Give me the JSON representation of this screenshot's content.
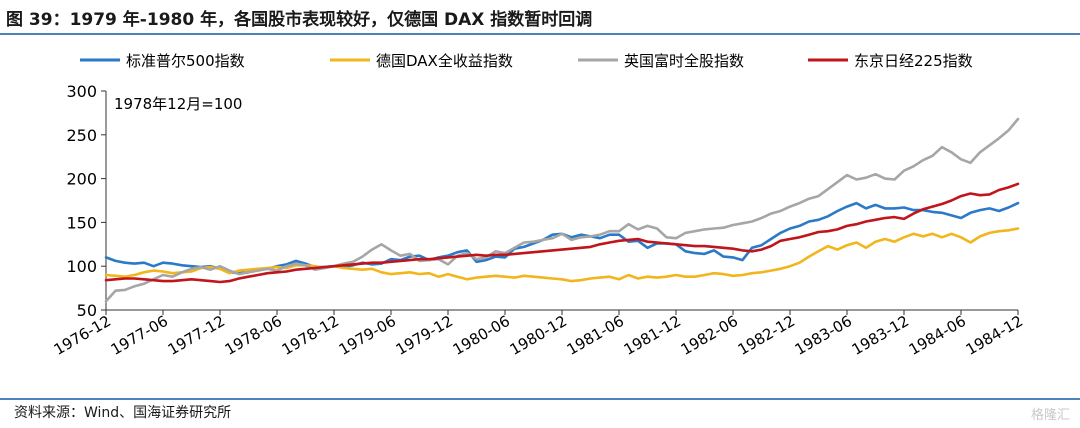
{
  "title": "图 39：1979 年-1980 年，各国股市表现较好，仅德国 DAX 指数暂时回调",
  "source": "资料来源：Wind、国海证券研究所",
  "watermark": "格隆汇",
  "chart_data": {
    "type": "line",
    "annotation": "1978年12月=100",
    "ylim": [
      50,
      300
    ],
    "yticks": [
      50,
      100,
      150,
      200,
      250,
      300
    ],
    "x": [
      "1976-12",
      "1977-01",
      "1977-02",
      "1977-03",
      "1977-04",
      "1977-05",
      "1977-06",
      "1977-07",
      "1977-08",
      "1977-09",
      "1977-10",
      "1977-11",
      "1977-12",
      "1978-01",
      "1978-02",
      "1978-03",
      "1978-04",
      "1978-05",
      "1978-06",
      "1978-07",
      "1978-08",
      "1978-09",
      "1978-10",
      "1978-11",
      "1978-12",
      "1979-01",
      "1979-02",
      "1979-03",
      "1979-04",
      "1979-05",
      "1979-06",
      "1979-07",
      "1979-08",
      "1979-09",
      "1979-10",
      "1979-11",
      "1979-12",
      "1980-01",
      "1980-02",
      "1980-03",
      "1980-04",
      "1980-05",
      "1980-06",
      "1980-07",
      "1980-08",
      "1980-09",
      "1980-10",
      "1980-11",
      "1980-12",
      "1981-01",
      "1981-02",
      "1981-03",
      "1981-04",
      "1981-05",
      "1981-06",
      "1981-07",
      "1981-08",
      "1981-09",
      "1981-10",
      "1981-11",
      "1981-12",
      "1982-01",
      "1982-02",
      "1982-03",
      "1982-04",
      "1982-05",
      "1982-06",
      "1982-07",
      "1982-08",
      "1982-09",
      "1982-10",
      "1982-11",
      "1982-12",
      "1983-01",
      "1983-02",
      "1983-03",
      "1983-04",
      "1983-05",
      "1983-06",
      "1983-07",
      "1983-08",
      "1983-09",
      "1983-10",
      "1983-11",
      "1983-12",
      "1984-01",
      "1984-02",
      "1984-03",
      "1984-04",
      "1984-05",
      "1984-06",
      "1984-07",
      "1984-08",
      "1984-09",
      "1984-10",
      "1984-11",
      "1984-12"
    ],
    "xtick_labels": [
      "1976-12",
      "1977-06",
      "1977-12",
      "1978-06",
      "1978-12",
      "1979-06",
      "1979-12",
      "1980-06",
      "1980-12",
      "1981-06",
      "1981-12",
      "1982-06",
      "1982-12",
      "1983-06",
      "1983-12",
      "1984-06",
      "1984-12"
    ],
    "legend_position": "top",
    "series": [
      {
        "name": "标准普尔500指数",
        "color": "#2a7ac7",
        "values": [
          110,
          106,
          104,
          103,
          104,
          100,
          104,
          103,
          101,
          100,
          99,
          100,
          97,
          93,
          92,
          93,
          96,
          97,
          100,
          102,
          106,
          103,
          99,
          99,
          100,
          99,
          101,
          104,
          102,
          103,
          108,
          107,
          111,
          112,
          107,
          110,
          112,
          116,
          118,
          105,
          107,
          111,
          110,
          120,
          122,
          126,
          130,
          136,
          137,
          133,
          136,
          134,
          132,
          136,
          136,
          128,
          129,
          121,
          126,
          126,
          125,
          117,
          115,
          114,
          118,
          111,
          110,
          107,
          121,
          124,
          131,
          138,
          143,
          146,
          151,
          153,
          157,
          163,
          168,
          172,
          166,
          170,
          166,
          166,
          167,
          164,
          164,
          162,
          161,
          158,
          155,
          161,
          164,
          166,
          163,
          167,
          172
        ]
      },
      {
        "name": "德国DAX全收益指数",
        "color": "#f2b51c",
        "values": [
          90,
          89,
          88,
          90,
          93,
          95,
          94,
          92,
          93,
          94,
          98,
          99,
          97,
          92,
          95,
          96,
          97,
          98,
          99,
          98,
          101,
          101,
          100,
          98,
          100,
          98,
          97,
          96,
          97,
          93,
          91,
          92,
          93,
          91,
          92,
          88,
          91,
          88,
          85,
          87,
          88,
          89,
          88,
          87,
          89,
          88,
          87,
          86,
          85,
          83,
          84,
          86,
          87,
          88,
          85,
          90,
          86,
          88,
          87,
          88,
          90,
          88,
          88,
          90,
          92,
          91,
          89,
          90,
          92,
          93,
          95,
          97,
          100,
          104,
          111,
          117,
          123,
          119,
          124,
          127,
          121,
          128,
          131,
          128,
          133,
          137,
          134,
          137,
          133,
          137,
          133,
          127,
          134,
          138,
          140,
          141,
          143
        ]
      },
      {
        "name": "英国富时全股指数",
        "color": "#a6a6a6",
        "values": [
          60,
          72,
          73,
          77,
          80,
          85,
          90,
          88,
          93,
          97,
          99,
          96,
          100,
          95,
          91,
          93,
          95,
          97,
          95,
          100,
          103,
          101,
          96,
          98,
          100,
          103,
          105,
          111,
          119,
          125,
          118,
          112,
          114,
          106,
          107,
          108,
          102,
          112,
          115,
          108,
          110,
          117,
          115,
          121,
          127,
          128,
          130,
          132,
          137,
          130,
          133,
          134,
          136,
          140,
          140,
          148,
          142,
          146,
          143,
          133,
          132,
          138,
          140,
          142,
          143,
          144,
          147,
          149,
          151,
          155,
          160,
          163,
          168,
          172,
          177,
          180,
          188,
          196,
          204,
          199,
          201,
          205,
          200,
          199,
          209,
          214,
          221,
          226,
          236,
          230,
          222,
          218,
          230,
          238,
          246,
          255,
          268
        ]
      },
      {
        "name": "东京日经225指数",
        "color": "#c0151b",
        "values": [
          84,
          85,
          86,
          86,
          85,
          84,
          83,
          83,
          84,
          85,
          84,
          83,
          82,
          83,
          86,
          88,
          90,
          92,
          93,
          94,
          96,
          97,
          98,
          99,
          100,
          101,
          102,
          103,
          104,
          104,
          105,
          106,
          107,
          108,
          108,
          109,
          110,
          111,
          112,
          113,
          112,
          113,
          113,
          114,
          115,
          116,
          117,
          118,
          119,
          120,
          121,
          122,
          125,
          127,
          129,
          130,
          131,
          128,
          127,
          126,
          125,
          124,
          123,
          123,
          122,
          121,
          120,
          118,
          117,
          119,
          123,
          129,
          131,
          133,
          136,
          139,
          140,
          142,
          146,
          148,
          151,
          153,
          155,
          156,
          154,
          160,
          165,
          168,
          171,
          175,
          180,
          183,
          181,
          182,
          187,
          190,
          194
        ]
      }
    ]
  }
}
